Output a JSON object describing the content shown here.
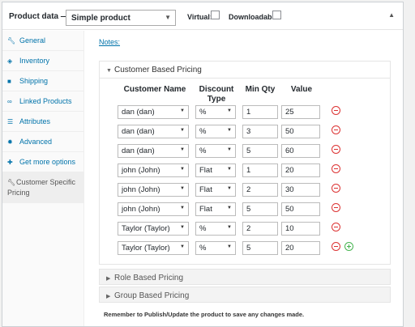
{
  "header": {
    "title": "Product data —",
    "product_type": "Simple product",
    "virtual_label": "Virtual:",
    "downloadable_label": "Downloadable:"
  },
  "sidebar": {
    "items": [
      {
        "label": "General",
        "icon": "wrench-icon"
      },
      {
        "label": "Inventory",
        "icon": "tag-icon"
      },
      {
        "label": "Shipping",
        "icon": "truck-icon"
      },
      {
        "label": "Linked Products",
        "icon": "link-icon"
      },
      {
        "label": "Attributes",
        "icon": "list-icon"
      },
      {
        "label": "Advanced",
        "icon": "gear-icon"
      },
      {
        "label": "Get more options",
        "icon": "plugin-icon"
      },
      {
        "label": "Customer Specific Pricing",
        "icon": "wrench-icon"
      }
    ]
  },
  "notes_label": "Notes:",
  "sections": {
    "customer": "Customer Based Pricing",
    "role": "Role Based Pricing",
    "group": "Group Based Pricing"
  },
  "table": {
    "headers": {
      "customer": "Customer Name",
      "discount_type": "Discount Type",
      "min_qty": "Min Qty",
      "value": "Value"
    },
    "rows": [
      {
        "customer": "dan (dan)",
        "type": "%",
        "qty": "1",
        "value": "25"
      },
      {
        "customer": "dan (dan)",
        "type": "%",
        "qty": "3",
        "value": "50"
      },
      {
        "customer": "dan (dan)",
        "type": "%",
        "qty": "5",
        "value": "60"
      },
      {
        "customer": "john (John)",
        "type": "Flat",
        "qty": "1",
        "value": "20"
      },
      {
        "customer": "john (John)",
        "type": "Flat",
        "qty": "2",
        "value": "30"
      },
      {
        "customer": "john (John)",
        "type": "Flat",
        "qty": "5",
        "value": "50"
      },
      {
        "customer": "Taylor (Taylor)",
        "type": "%",
        "qty": "2",
        "value": "10"
      },
      {
        "customer": "Taylor (Taylor)",
        "type": "%",
        "qty": "5",
        "value": "20"
      }
    ]
  },
  "footer_note": "Remember to Publish/Update the product to save any changes made.",
  "colors": {
    "link": "#0073aa",
    "remove": "#dc3232",
    "add": "#46b450"
  }
}
